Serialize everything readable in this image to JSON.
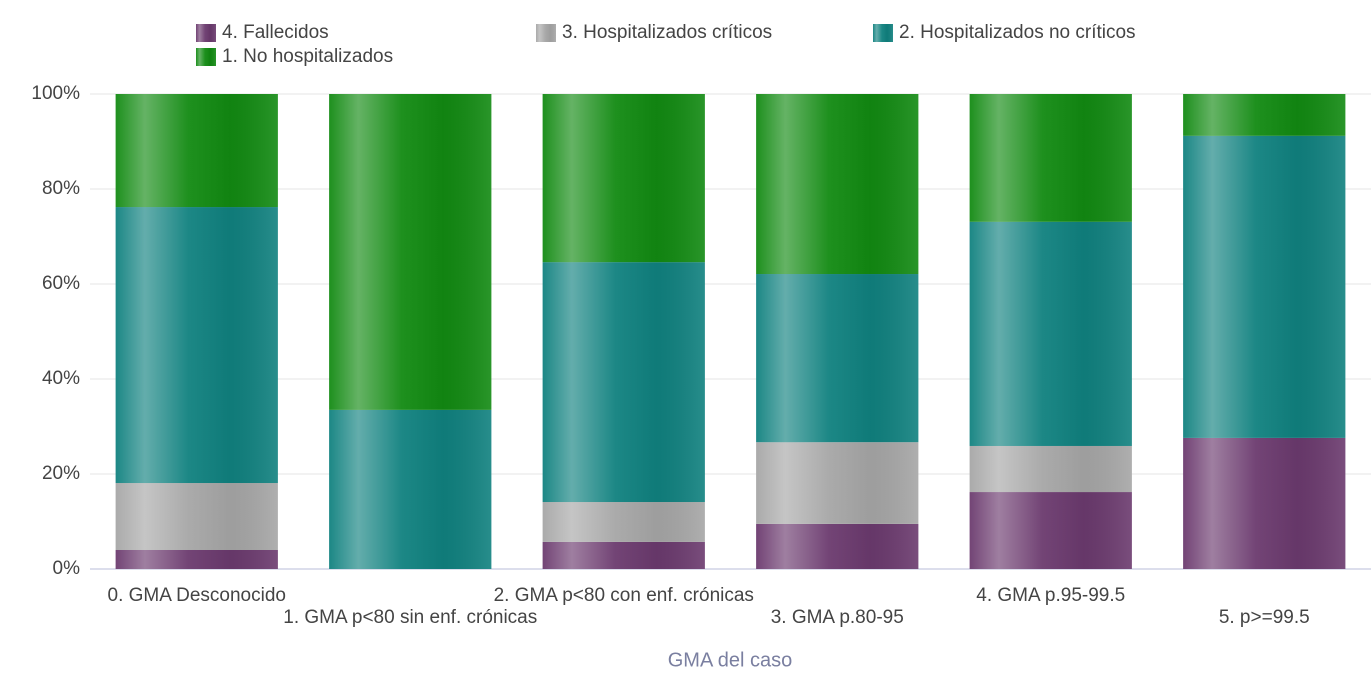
{
  "chart_data": {
    "type": "stacked-bar-percent",
    "x_label": "GMA del caso",
    "categories": [
      "0. GMA Desconocido",
      "1. GMA p<80 sin enf. crónicas",
      "2. GMA p<80 con enf. crónicas",
      "3. GMA p.80-95",
      "4. GMA p.95-99.5",
      "5. p>=99.5"
    ],
    "series": [
      {
        "name": "4. Fallecidos",
        "color": "#6b3a6e",
        "values": [
          4.0,
          0,
          5.7,
          9.5,
          16.2,
          27.6
        ]
      },
      {
        "name": "3. Hospitalizados críticos",
        "color": "#a6a6a6",
        "values": [
          14.1,
          0,
          8.4,
          17.2,
          9.7,
          0
        ]
      },
      {
        "name": "2. Hospitalizados no críticos",
        "color": "#10817f",
        "values": [
          58.1,
          33.5,
          50.5,
          35.4,
          47.2,
          63.6
        ]
      },
      {
        "name": "1. No hospitalizados",
        "color": "#128a12",
        "values": [
          23.8,
          66.5,
          35.4,
          37.9,
          26.9,
          8.8
        ]
      }
    ],
    "ylim": [
      0,
      100
    ],
    "yticks": [
      {
        "value": 0,
        "label": "0%"
      },
      {
        "value": 20,
        "label": "20%"
      },
      {
        "value": 40,
        "label": "40%"
      },
      {
        "value": 60,
        "label": "60%"
      },
      {
        "value": 80,
        "label": "80%"
      },
      {
        "value": 100,
        "label": "100%"
      }
    ],
    "grid": true
  }
}
